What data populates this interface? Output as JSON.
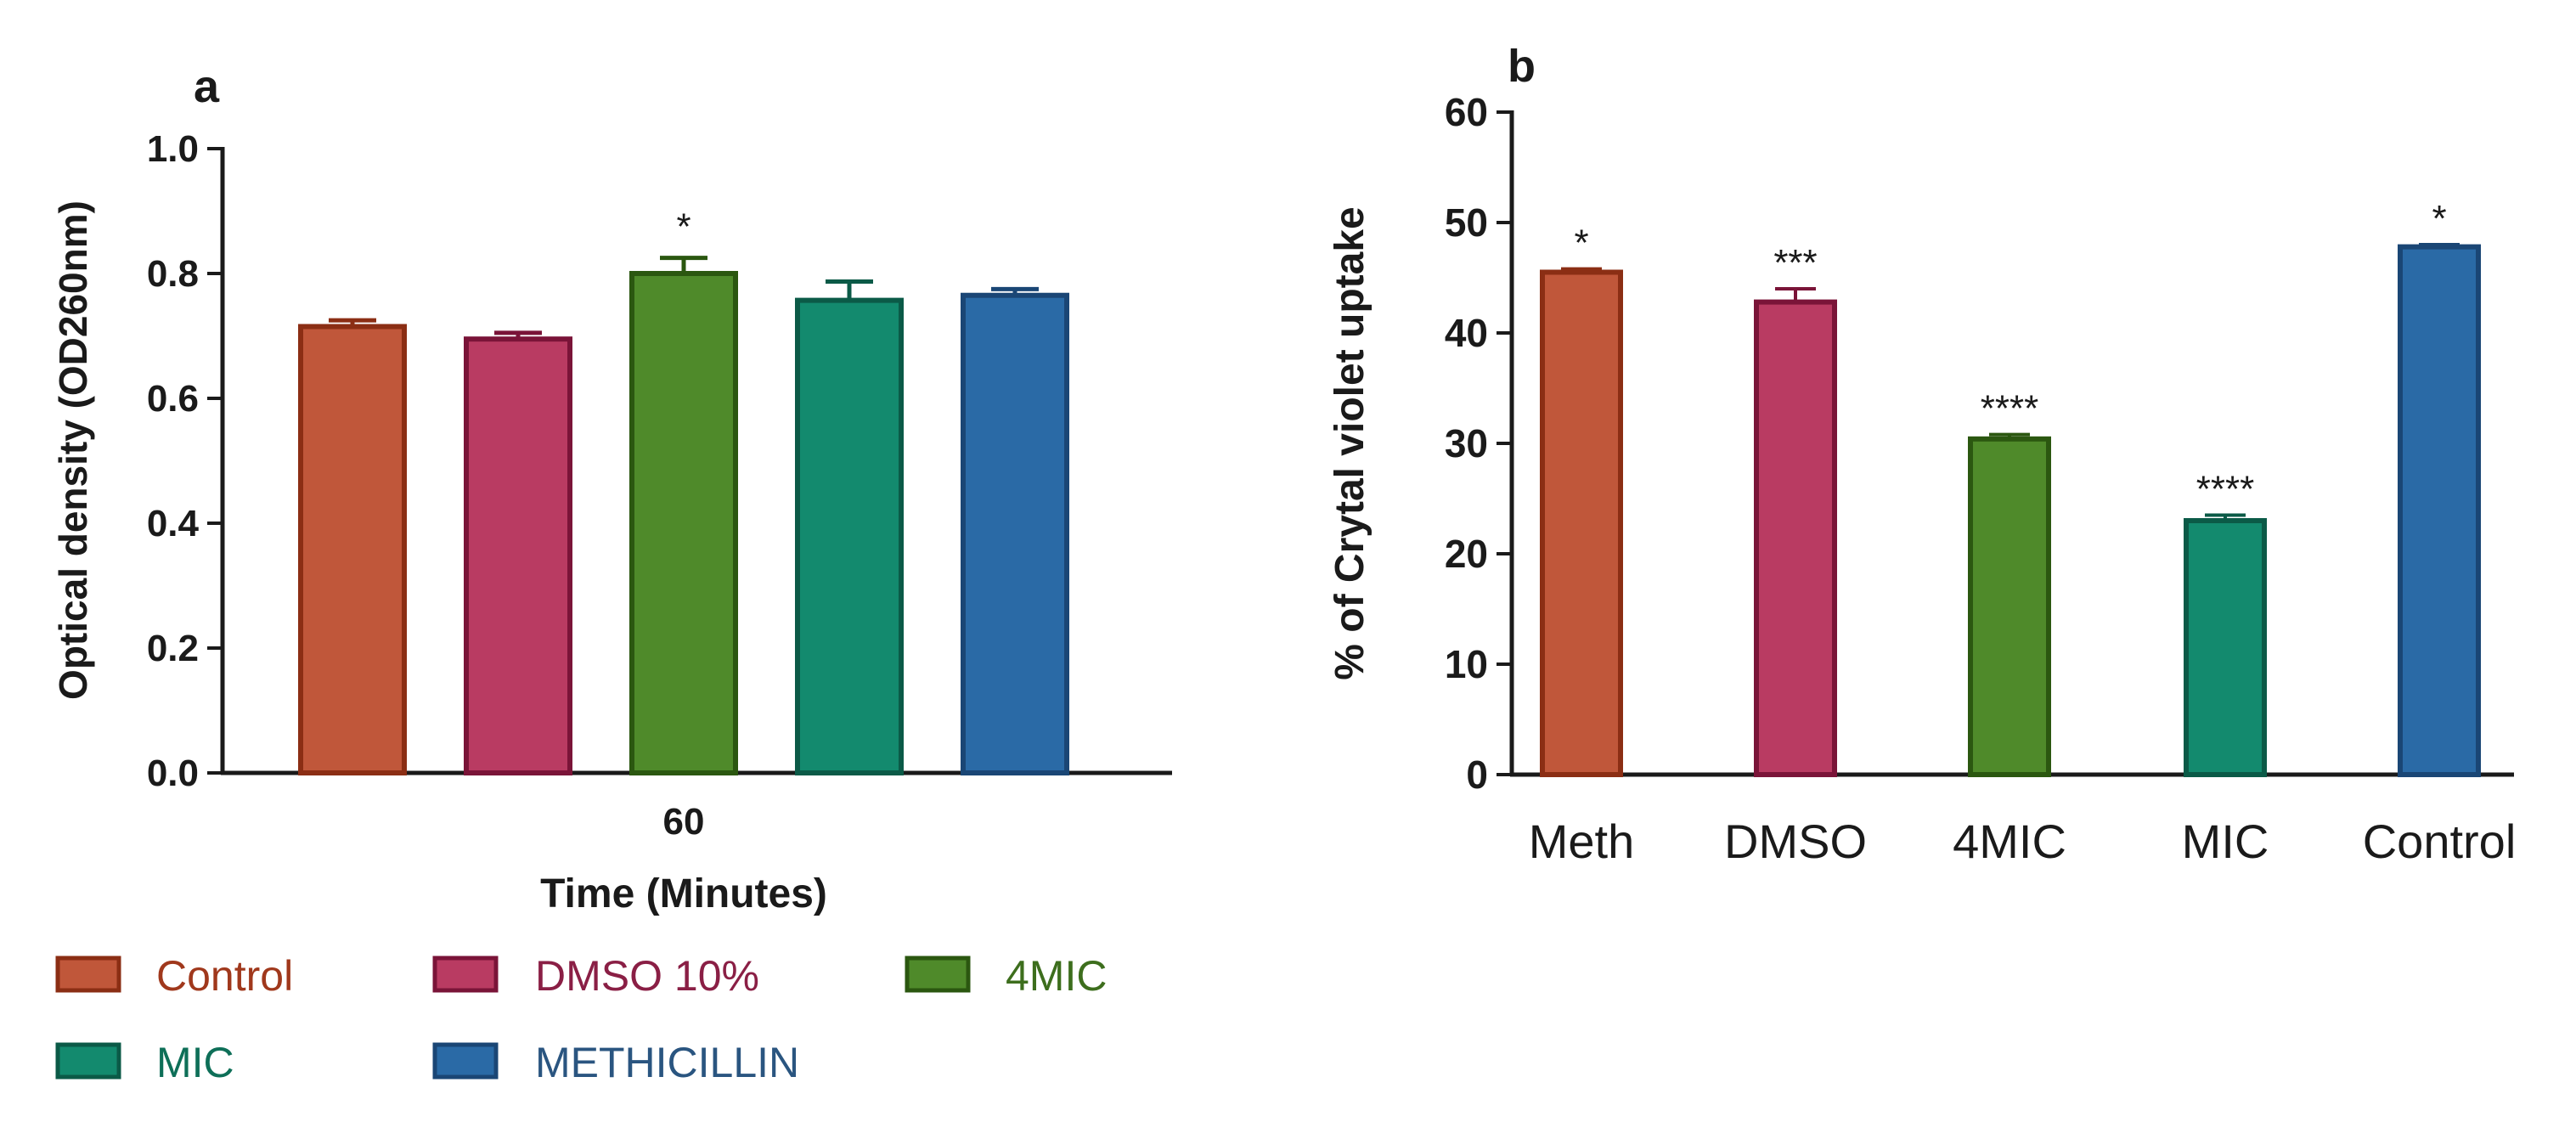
{
  "panels": [
    {
      "letter": "a",
      "chart_data": {
        "type": "bar",
        "title": "",
        "xlabel": "Time (Minutes)",
        "ylabel": "Optical density (OD260nm)",
        "ylim": [
          0,
          1.0
        ],
        "yticks": [
          0.0,
          0.2,
          0.4,
          0.6,
          0.8,
          1.0
        ],
        "ytick_labels": [
          "0.0",
          "0.2",
          "0.4",
          "0.6",
          "0.8",
          "1.0"
        ],
        "categories": [
          "60"
        ],
        "series": [
          {
            "name": "Control",
            "values": [
              0.715
            ],
            "error": [
              0.01
            ],
            "significance": [
              ""
            ]
          },
          {
            "name": "DMSO 10%",
            "values": [
              0.695
            ],
            "error": [
              0.01
            ],
            "significance": [
              ""
            ]
          },
          {
            "name": "4MIC",
            "values": [
              0.8
            ],
            "error": [
              0.025
            ],
            "significance": [
              "*"
            ]
          },
          {
            "name": "MIC",
            "values": [
              0.757
            ],
            "error": [
              0.03
            ],
            "significance": [
              ""
            ]
          },
          {
            "name": "METHICILLIN",
            "values": [
              0.765
            ],
            "error": [
              0.01
            ],
            "significance": [
              ""
            ]
          }
        ],
        "legend_position": "bottom"
      }
    },
    {
      "letter": "b",
      "chart_data": {
        "type": "bar",
        "title": "",
        "xlabel": "",
        "ylabel": "% of Crytal violet uptake",
        "ylim": [
          0,
          60
        ],
        "yticks": [
          0,
          10,
          20,
          30,
          40,
          50,
          60
        ],
        "ytick_labels": [
          "0",
          "10",
          "20",
          "30",
          "40",
          "50",
          "60"
        ],
        "categories": [
          "Meth",
          "DMSO",
          "4MIC",
          "MIC",
          "Control"
        ],
        "values": [
          45.5,
          42.8,
          30.4,
          23.0,
          47.8
        ],
        "error": [
          0.3,
          1.2,
          0.4,
          0.5,
          0.2
        ],
        "significance": [
          "*",
          "***",
          "****",
          "****",
          "*"
        ]
      }
    }
  ],
  "colors": {
    "control_fill": "#c0573a",
    "control_edge": "#8b2e14",
    "dmso_fill": "#b93b62",
    "dmso_edge": "#7a1438",
    "mic4_fill": "#4f8a2a",
    "mic4_edge": "#2b5710",
    "mic_fill": "#138a6e",
    "mic_edge": "#0b5a47",
    "meth_fill": "#2a6aa6",
    "meth_edge": "#1a4675",
    "axis": "#1a1a1a"
  }
}
